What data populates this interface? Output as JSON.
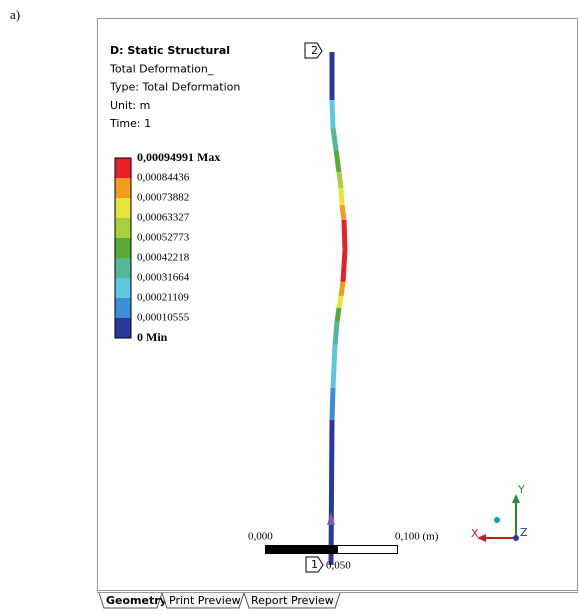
{
  "figure_label": "a)",
  "header": {
    "lines": [
      "D: Static Structural",
      "Total Deformation_",
      "Type: Total Deformation",
      "Unit: m",
      "Time: 1"
    ]
  },
  "legend": {
    "labels": [
      "0,00094991 Max",
      "0,00084436",
      "0,00073882",
      "0,00063327",
      "0,00052773",
      "0,00042218",
      "0,00031664",
      "0,00021109",
      "0,00010555",
      "0 Min"
    ],
    "colors": [
      "#e8202a",
      "#f39b1d",
      "#e4e43a",
      "#a9d03c",
      "#5aaa3a",
      "#52b896",
      "#5cc7de",
      "#3a8fd8",
      "#2a3a9c"
    ]
  },
  "scale_bar": {
    "start": "0,000",
    "end": "0,100 (m)",
    "middle": "0,050"
  },
  "probes": [
    "2",
    "1"
  ],
  "triad": {
    "x": "X",
    "y": "Y",
    "z": "Z"
  },
  "tabs": [
    "Geometry",
    "Print Preview",
    "Report Preview"
  ]
}
